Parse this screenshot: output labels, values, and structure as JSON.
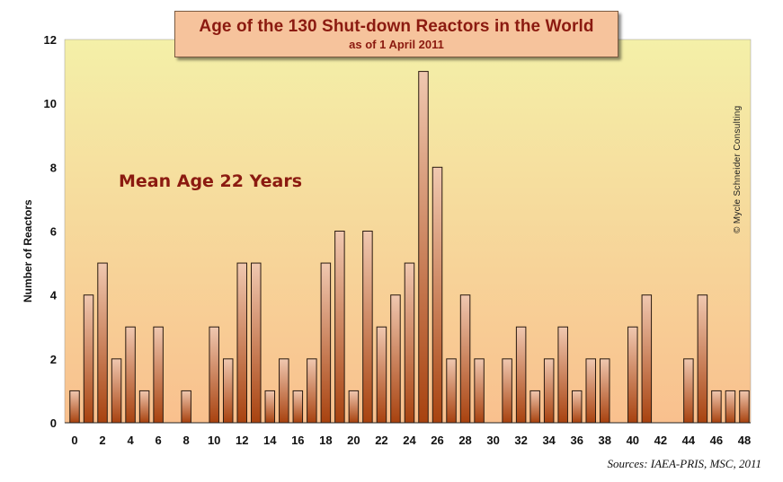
{
  "chart_data": {
    "type": "bar",
    "title": "Age of the 130 Shut-down Reactors in the World",
    "subtitle": "as of 1 April 2011",
    "ylabel": "Number of Reactors",
    "xlabel": "",
    "ylim": [
      0,
      12
    ],
    "yticks": [
      "0",
      "2",
      "4",
      "6",
      "8",
      "10",
      "12"
    ],
    "xtick_labels": [
      "0",
      "2",
      "4",
      "6",
      "8",
      "10",
      "12",
      "14",
      "16",
      "18",
      "20",
      "22",
      "24",
      "26",
      "28",
      "30",
      "32",
      "34",
      "36",
      "38",
      "40",
      "42",
      "44",
      "46",
      "48"
    ],
    "categories": [
      0,
      1,
      2,
      3,
      4,
      5,
      6,
      7,
      8,
      9,
      10,
      11,
      12,
      13,
      14,
      15,
      16,
      17,
      18,
      19,
      20,
      21,
      22,
      23,
      24,
      25,
      26,
      27,
      28,
      29,
      30,
      31,
      32,
      33,
      34,
      35,
      36,
      37,
      38,
      39,
      40,
      41,
      42,
      43,
      44,
      45,
      46,
      47,
      48
    ],
    "values": [
      1,
      4,
      5,
      2,
      3,
      1,
      3,
      0,
      1,
      0,
      3,
      2,
      5,
      5,
      1,
      2,
      1,
      2,
      5,
      6,
      1,
      6,
      3,
      4,
      5,
      11,
      8,
      2,
      4,
      2,
      0,
      2,
      3,
      1,
      2,
      3,
      1,
      2,
      2,
      0,
      3,
      4,
      0,
      0,
      2,
      4,
      1,
      1,
      1
    ],
    "grid": false,
    "colors": {
      "bar_top": "#f0c8b0",
      "bar_bottom": "#a8420f",
      "bar_edge": "#2a1a10",
      "bg_top": "#f4f0a8",
      "bg_bottom": "#f9c08e"
    }
  },
  "annotation": "Mean Age 22 Years",
  "copyright": "© Mycle Schneider Consulting",
  "source": "Sources: IAEA-PRIS, MSC, 2011"
}
